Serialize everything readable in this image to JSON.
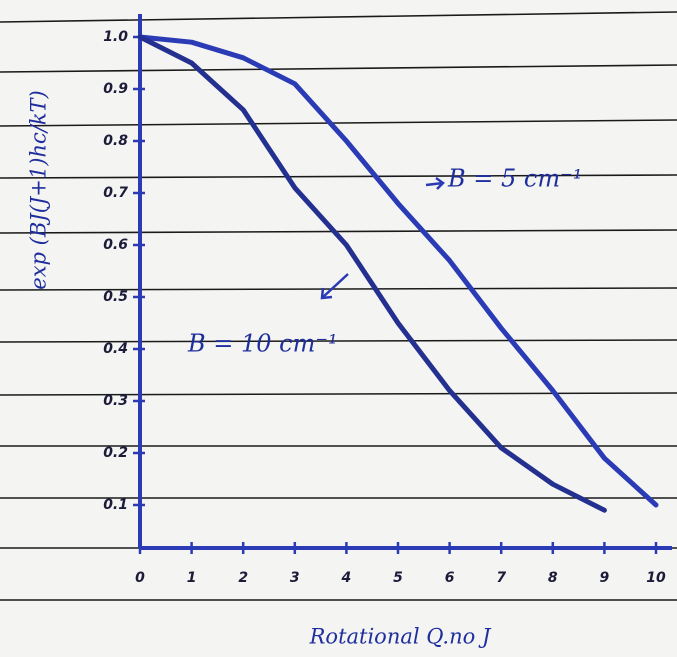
{
  "chart_data": {
    "type": "line",
    "x_label": "Rotational Q.no J",
    "y_label": "exp (BJ(J+1)hc/kT)",
    "annotations": [
      "B = 5 cm⁻¹",
      "B = 10 cm⁻¹"
    ],
    "x": [
      0,
      1,
      2,
      3,
      4,
      5,
      6,
      7,
      8,
      9,
      10
    ],
    "series": [
      {
        "name": "B = 5 cm⁻¹",
        "color": "#2a3bb5",
        "values": [
          1.0,
          0.99,
          0.96,
          0.91,
          0.8,
          0.68,
          0.57,
          0.44,
          0.32,
          0.19,
          0.1
        ]
      },
      {
        "name": "B = 10 cm⁻¹",
        "color": "#23308f",
        "values": [
          1.0,
          0.95,
          0.86,
          0.71,
          0.6,
          0.45,
          0.32,
          0.21,
          0.14,
          0.09,
          null
        ]
      }
    ],
    "xlim": [
      0,
      10
    ],
    "ylim": [
      0,
      1
    ],
    "xticks": [
      0,
      1,
      2,
      3,
      4,
      5,
      6,
      7,
      8,
      9,
      10
    ],
    "yticks": [
      0.1,
      0.2,
      0.3,
      0.4,
      0.5,
      0.6,
      0.7,
      0.8,
      0.9,
      {
        "value": 1,
        "label": "1.0"
      }
    ],
    "axis_color": "#2a3bb5"
  }
}
